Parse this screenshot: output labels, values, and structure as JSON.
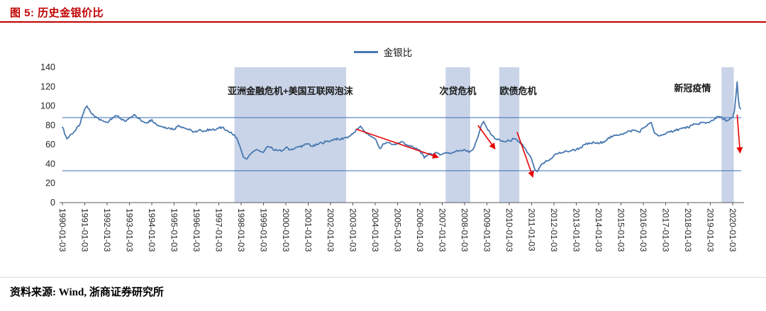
{
  "header": {
    "title": "图 5: 历史金银价比"
  },
  "footer": {
    "source": "资料来源: Wind, 浙商证券研究所"
  },
  "colors": {
    "title_red": "#c00000",
    "line_blue": "#4878b0",
    "band_blue": "#c9d4e8",
    "ref_blue": "#3a6bb0",
    "arrow_red": "#e60000",
    "axis": "#595959",
    "tick_text": "#262626",
    "annotation_text": "#1a1a1a"
  },
  "chart_data": {
    "type": "line",
    "title": "历史金银价比",
    "legend": [
      "金银比"
    ],
    "legend_position": "top",
    "xlabel": "",
    "ylabel": "",
    "grid": false,
    "ylim": [
      0,
      140
    ],
    "yticks": [
      0,
      20,
      40,
      60,
      80,
      100,
      120,
      140
    ],
    "x_range": [
      1990,
      2020.38
    ],
    "xtick_labels": [
      "1990-01-03",
      "1991-01-03",
      "1992-01-03",
      "1993-01-03",
      "1994-01-03",
      "1995-01-03",
      "1996-01-03",
      "1997-01-03",
      "1998-01-03",
      "1999-01-03",
      "2000-01-03",
      "2001-01-03",
      "2002-01-03",
      "2003-01-03",
      "2004-01-03",
      "2005-01-03",
      "2006-01-03",
      "2007-01-03",
      "2008-01-03",
      "2009-01-03",
      "2010-01-03",
      "2011-01-03",
      "2012-01-03",
      "2013-01-03",
      "2014-01-03",
      "2015-01-03",
      "2016-01-03",
      "2017-01-03",
      "2018-01-03",
      "2019-01-03",
      "2020-01-03"
    ],
    "ref_lines": [
      88,
      33
    ],
    "bands": [
      {
        "label": "亚洲金融危机+美国互联网泡沫",
        "x0": 1997.7,
        "x1": 2002.7,
        "label_x": 2000.2,
        "label_y": 112
      },
      {
        "label": "次贷危机",
        "x0": 2007.15,
        "x1": 2008.25,
        "label_x": 2007.7,
        "label_y": 112
      },
      {
        "label": "欧债危机",
        "x0": 2009.55,
        "x1": 2010.45,
        "label_x": 2010.4,
        "label_y": 112
      },
      {
        "label": "新冠疫情",
        "x0": 2019.5,
        "x1": 2020.05,
        "label_x": 2018.2,
        "label_y": 115
      }
    ],
    "arrows": [
      {
        "x1": 2003.15,
        "y1": 76,
        "x2": 2006.8,
        "y2": 47
      },
      {
        "x1": 2008.6,
        "y1": 80,
        "x2": 2009.35,
        "y2": 56
      },
      {
        "x1": 2010.35,
        "y1": 73,
        "x2": 2011.05,
        "y2": 27
      },
      {
        "x1": 2020.2,
        "y1": 91,
        "x2": 2020.33,
        "y2": 52
      }
    ],
    "series": [
      {
        "name": "金银比",
        "points": [
          [
            1990.0,
            78
          ],
          [
            1990.2,
            66
          ],
          [
            1990.4,
            71
          ],
          [
            1990.6,
            75
          ],
          [
            1990.8,
            82
          ],
          [
            1991.0,
            97
          ],
          [
            1991.1,
            100
          ],
          [
            1991.3,
            92
          ],
          [
            1991.5,
            89
          ],
          [
            1991.7,
            86
          ],
          [
            1991.85,
            84
          ],
          [
            1992.0,
            83
          ],
          [
            1992.2,
            86
          ],
          [
            1992.4,
            90
          ],
          [
            1992.6,
            87
          ],
          [
            1992.8,
            84
          ],
          [
            1993.0,
            88
          ],
          [
            1993.2,
            91
          ],
          [
            1993.4,
            87
          ],
          [
            1993.6,
            84
          ],
          [
            1993.8,
            83
          ],
          [
            1994.0,
            86
          ],
          [
            1994.2,
            81
          ],
          [
            1994.4,
            79
          ],
          [
            1994.6,
            78
          ],
          [
            1994.8,
            77
          ],
          [
            1995.0,
            76
          ],
          [
            1995.2,
            80
          ],
          [
            1995.4,
            78
          ],
          [
            1995.6,
            76
          ],
          [
            1995.8,
            74
          ],
          [
            1996.0,
            73
          ],
          [
            1996.2,
            75
          ],
          [
            1996.4,
            74
          ],
          [
            1996.6,
            76
          ],
          [
            1996.8,
            75
          ],
          [
            1997.0,
            77
          ],
          [
            1997.2,
            78
          ],
          [
            1997.4,
            74
          ],
          [
            1997.6,
            71
          ],
          [
            1997.8,
            67
          ],
          [
            1997.95,
            58
          ],
          [
            1998.1,
            47
          ],
          [
            1998.25,
            45
          ],
          [
            1998.4,
            50
          ],
          [
            1998.55,
            53
          ],
          [
            1998.7,
            55
          ],
          [
            1998.85,
            53
          ],
          [
            1999.0,
            52
          ],
          [
            1999.2,
            58
          ],
          [
            1999.4,
            56
          ],
          [
            1999.6,
            54
          ],
          [
            1999.8,
            53
          ],
          [
            2000.0,
            57
          ],
          [
            2000.2,
            55
          ],
          [
            2000.4,
            56
          ],
          [
            2000.6,
            58
          ],
          [
            2000.8,
            59
          ],
          [
            2001.0,
            61
          ],
          [
            2001.2,
            58
          ],
          [
            2001.4,
            60
          ],
          [
            2001.6,
            62
          ],
          [
            2001.8,
            63
          ],
          [
            2002.0,
            64
          ],
          [
            2002.2,
            66
          ],
          [
            2002.4,
            65
          ],
          [
            2002.6,
            67
          ],
          [
            2002.8,
            68
          ],
          [
            2003.0,
            71
          ],
          [
            2003.2,
            76
          ],
          [
            2003.35,
            79
          ],
          [
            2003.5,
            74
          ],
          [
            2003.7,
            70
          ],
          [
            2003.85,
            68
          ],
          [
            2004.0,
            66
          ],
          [
            2004.2,
            56
          ],
          [
            2004.4,
            61
          ],
          [
            2004.6,
            62
          ],
          [
            2004.8,
            60
          ],
          [
            2005.0,
            61
          ],
          [
            2005.2,
            63
          ],
          [
            2005.4,
            60
          ],
          [
            2005.6,
            58
          ],
          [
            2005.8,
            56
          ],
          [
            2006.0,
            54
          ],
          [
            2006.2,
            46
          ],
          [
            2006.4,
            51
          ],
          [
            2006.6,
            50
          ],
          [
            2006.8,
            51
          ],
          [
            2007.0,
            50
          ],
          [
            2007.2,
            52
          ],
          [
            2007.4,
            51
          ],
          [
            2007.6,
            53
          ],
          [
            2007.8,
            54
          ],
          [
            2008.0,
            55
          ],
          [
            2008.2,
            52
          ],
          [
            2008.4,
            56
          ],
          [
            2008.6,
            68
          ],
          [
            2008.75,
            80
          ],
          [
            2008.85,
            84
          ],
          [
            2009.0,
            77
          ],
          [
            2009.2,
            70
          ],
          [
            2009.4,
            66
          ],
          [
            2009.6,
            64
          ],
          [
            2009.8,
            63
          ],
          [
            2010.0,
            64
          ],
          [
            2010.2,
            66
          ],
          [
            2010.4,
            63
          ],
          [
            2010.6,
            60
          ],
          [
            2010.8,
            52
          ],
          [
            2011.0,
            45
          ],
          [
            2011.15,
            34
          ],
          [
            2011.25,
            32
          ],
          [
            2011.4,
            38
          ],
          [
            2011.6,
            42
          ],
          [
            2011.8,
            44
          ],
          [
            2012.0,
            49
          ],
          [
            2012.2,
            51
          ],
          [
            2012.4,
            52
          ],
          [
            2012.6,
            53
          ],
          [
            2012.8,
            54
          ],
          [
            2013.0,
            55
          ],
          [
            2013.2,
            57
          ],
          [
            2013.4,
            60
          ],
          [
            2013.6,
            61
          ],
          [
            2013.8,
            62
          ],
          [
            2014.0,
            61
          ],
          [
            2014.2,
            63
          ],
          [
            2014.4,
            66
          ],
          [
            2014.6,
            68
          ],
          [
            2014.8,
            70
          ],
          [
            2015.0,
            71
          ],
          [
            2015.2,
            72
          ],
          [
            2015.4,
            74
          ],
          [
            2015.6,
            75
          ],
          [
            2015.8,
            73
          ],
          [
            2016.0,
            77
          ],
          [
            2016.2,
            81
          ],
          [
            2016.35,
            83
          ],
          [
            2016.5,
            72
          ],
          [
            2016.7,
            69
          ],
          [
            2016.85,
            70
          ],
          [
            2017.0,
            71
          ],
          [
            2017.2,
            73
          ],
          [
            2017.4,
            75
          ],
          [
            2017.6,
            76
          ],
          [
            2017.8,
            77
          ],
          [
            2018.0,
            78
          ],
          [
            2018.2,
            80
          ],
          [
            2018.4,
            81
          ],
          [
            2018.6,
            83
          ],
          [
            2018.8,
            82
          ],
          [
            2019.0,
            84
          ],
          [
            2019.2,
            87
          ],
          [
            2019.4,
            89
          ],
          [
            2019.6,
            86
          ],
          [
            2019.8,
            85
          ],
          [
            2020.0,
            88
          ],
          [
            2020.08,
            95
          ],
          [
            2020.15,
            112
          ],
          [
            2020.2,
            125
          ],
          [
            2020.25,
            108
          ],
          [
            2020.3,
            99
          ],
          [
            2020.35,
            97
          ]
        ]
      }
    ]
  }
}
